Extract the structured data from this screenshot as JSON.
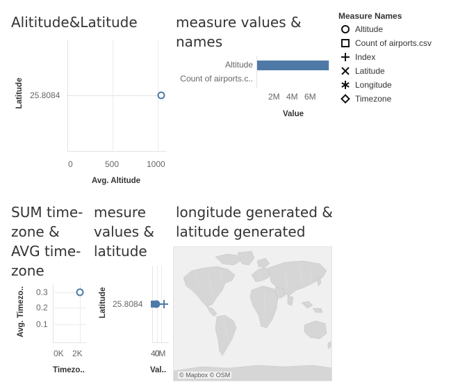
{
  "panels": {
    "alt_lat": {
      "title": "Alititude&Latitude",
      "y_axis_title": "Latitude",
      "x_axis_title": "Avg. Altitude",
      "y_tick": "25.8084",
      "x_ticks": [
        "0",
        "500",
        "1000"
      ]
    },
    "measure_names": {
      "title": "measure values & names",
      "categories": [
        "Altitude",
        "Count of airports.c.."
      ],
      "x_ticks": [
        "2M",
        "4M",
        "6M"
      ],
      "x_axis_title": "Value"
    },
    "tz": {
      "title": "SUM time-zone & AVG time-zone",
      "y_axis_title": "Avg. Timezo..",
      "x_axis_title": "Timezo..",
      "y_ticks": [
        "0.3",
        "0.2",
        "0.1"
      ],
      "x_ticks": [
        "0K",
        "2K"
      ]
    },
    "mv_lat": {
      "title": "mesure values & latitude",
      "y_axis_title": "Latitude",
      "y_tick": "25.8084",
      "x_ticks": [
        "40M",
        "0"
      ],
      "x_axis_title": "Val.."
    },
    "map": {
      "title": "longitude generated & latitude generated",
      "attribution": "© Mapbox © OSM"
    }
  },
  "legend": {
    "title": "Measure Names",
    "items": [
      {
        "label": "Altitude",
        "icon": "circle-icon"
      },
      {
        "label": "Count of airports.csv",
        "icon": "square-icon"
      },
      {
        "label": "Index",
        "icon": "plus-icon"
      },
      {
        "label": "Latitude",
        "icon": "cross-icon"
      },
      {
        "label": "Longitude",
        "icon": "asterisk-icon"
      },
      {
        "label": "Timezone",
        "icon": "diamond-icon"
      }
    ]
  },
  "chart_data": [
    {
      "type": "scatter",
      "title": "Alititude&Latitude",
      "xlabel": "Avg. Altitude",
      "ylabel": "Latitude",
      "xlim": [
        0,
        1100
      ],
      "points": [
        {
          "x": 1000,
          "y": 25.8084
        }
      ],
      "grid": true
    },
    {
      "type": "bar",
      "title": "measure values & names",
      "categories": [
        "Altitude",
        "Count of airports.c.."
      ],
      "values": [
        7400000,
        0
      ],
      "xlabel": "Value",
      "xlim": [
        0,
        7600000
      ],
      "orientation": "horizontal"
    },
    {
      "type": "scatter",
      "title": "SUM time-zone & AVG time-zone",
      "xlabel": "Timezo..",
      "ylabel": "Avg. Timezo..",
      "points": [
        {
          "x": 2000,
          "y": 0.3
        }
      ],
      "grid": true
    },
    {
      "type": "scatter",
      "title": "mesure values & latitude",
      "xlabel": "Val..",
      "ylabel": "Latitude",
      "series": [
        {
          "name": "Altitude",
          "marker": "circle",
          "y": 25.8084
        },
        {
          "name": "Count of airports.csv",
          "marker": "square",
          "y": 25.8084
        },
        {
          "name": "Index",
          "marker": "plus",
          "y": 25.8084
        }
      ]
    }
  ],
  "colors": {
    "mark": "#4e79a7",
    "grid": "#ebebeb",
    "map_water": "#f0f0f0",
    "map_land": "#d9d9d9"
  }
}
